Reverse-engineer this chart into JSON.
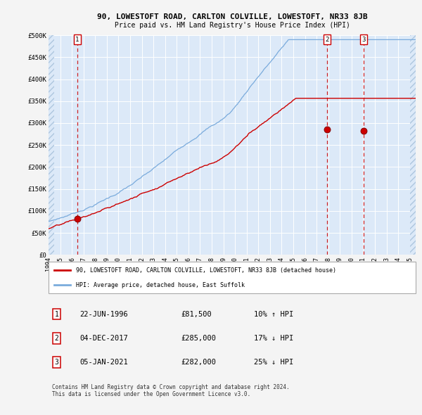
{
  "title": "90, LOWESTOFT ROAD, CARLTON COLVILLE, LOWESTOFT, NR33 8JB",
  "subtitle": "Price paid vs. HM Land Registry's House Price Index (HPI)",
  "bg_color": "#ffffff",
  "plot_bg_color": "#dce9f8",
  "fig_bg": "#f4f4f4",
  "grid_color": "#ffffff",
  "red_line_color": "#cc0000",
  "blue_line_color": "#7aabdc",
  "sale_marker_color": "#cc0000",
  "vline_color": "#cc0000",
  "x_start": 1994.0,
  "x_end": 2025.5,
  "y_min": 0,
  "y_max": 500000,
  "y_ticks": [
    0,
    50000,
    100000,
    150000,
    200000,
    250000,
    300000,
    350000,
    400000,
    450000,
    500000
  ],
  "y_tick_labels": [
    "£0",
    "£50K",
    "£100K",
    "£150K",
    "£200K",
    "£250K",
    "£300K",
    "£350K",
    "£400K",
    "£450K",
    "£500K"
  ],
  "sales": [
    {
      "date": 1996.47,
      "price": 81500,
      "label": "1"
    },
    {
      "date": 2017.92,
      "price": 285000,
      "label": "2"
    },
    {
      "date": 2021.02,
      "price": 282000,
      "label": "3"
    }
  ],
  "legend_red": "90, LOWESTOFT ROAD, CARLTON COLVILLE, LOWESTOFT, NR33 8JB (detached house)",
  "legend_blue": "HPI: Average price, detached house, East Suffolk",
  "table_rows": [
    {
      "num": "1",
      "date": "22-JUN-1996",
      "price": "£81,500",
      "hpi": "10% ↑ HPI"
    },
    {
      "num": "2",
      "date": "04-DEC-2017",
      "price": "£285,000",
      "hpi": "17% ↓ HPI"
    },
    {
      "num": "3",
      "date": "05-JAN-2021",
      "price": "£282,000",
      "hpi": "25% ↓ HPI"
    }
  ],
  "footer": "Contains HM Land Registry data © Crown copyright and database right 2024.\nThis data is licensed under the Open Government Licence v3.0.",
  "x_tick_years": [
    1994,
    1995,
    1996,
    1997,
    1998,
    1999,
    2000,
    2001,
    2002,
    2003,
    2004,
    2005,
    2006,
    2007,
    2008,
    2009,
    2010,
    2011,
    2012,
    2013,
    2014,
    2015,
    2016,
    2017,
    2018,
    2019,
    2020,
    2021,
    2022,
    2023,
    2024,
    2025
  ]
}
